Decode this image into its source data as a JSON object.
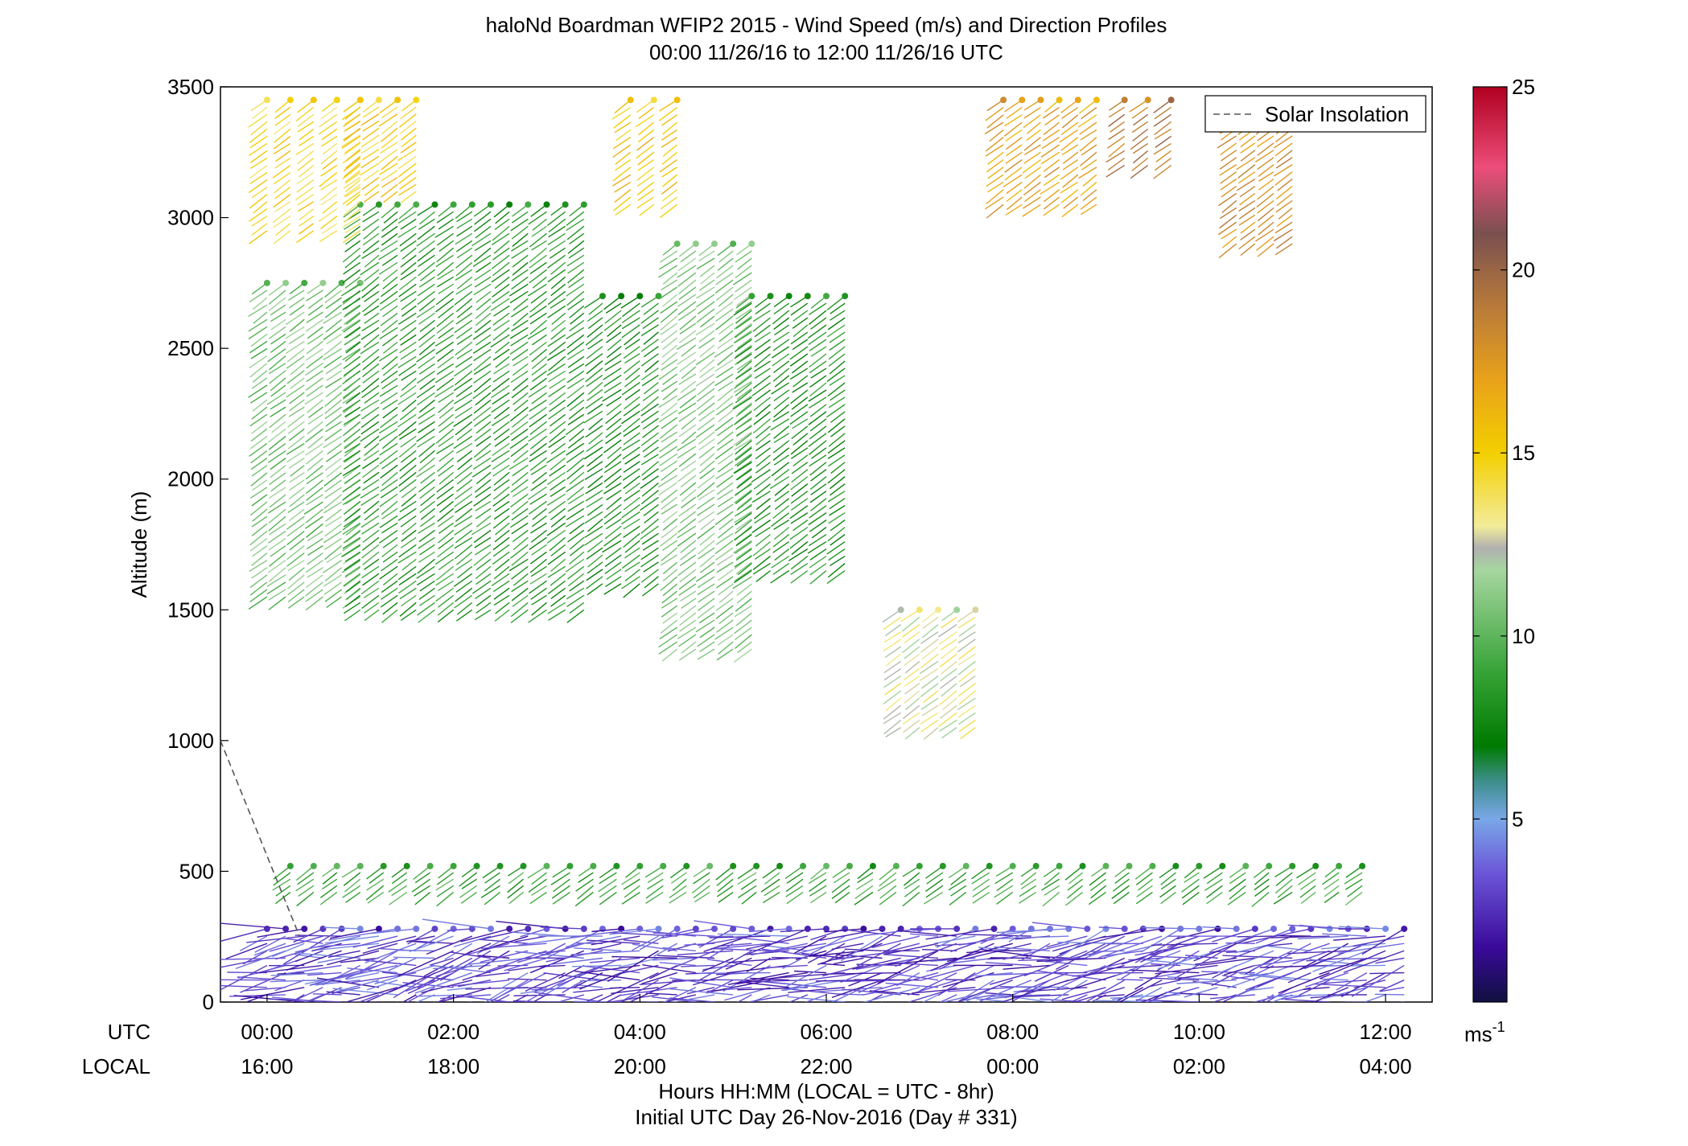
{
  "chart_data": {
    "type": "wind-barb-profile",
    "title": "haloNd Boardman WFIP2 2015 - Wind Speed (m/s) and Direction Profiles",
    "subtitle": "00:00 11/26/16 to 12:00 11/26/16  UTC",
    "ylabel": "Altitude (m)",
    "xlabel": "Hours HH:MM  (LOCAL = UTC - 8hr)",
    "xlabel2": "Initial UTC Day 26-Nov-2016 (Day # 331)",
    "xlim_hours": [
      -0.5,
      12.5
    ],
    "ylim": [
      0,
      3500
    ],
    "y_ticks": [
      "0",
      "500",
      "1000",
      "1500",
      "2000",
      "2500",
      "3000",
      "3500"
    ],
    "y_tick_values": [
      0,
      500,
      1000,
      1500,
      2000,
      2500,
      3000,
      3500
    ],
    "x_row_labels": [
      "UTC",
      "LOCAL"
    ],
    "x_ticks_utc": [
      "00:00",
      "02:00",
      "04:00",
      "06:00",
      "08:00",
      "10:00",
      "12:00"
    ],
    "x_ticks_local": [
      "16:00",
      "18:00",
      "20:00",
      "22:00",
      "00:00",
      "02:00",
      "04:00"
    ],
    "x_tick_hours": [
      0,
      2,
      4,
      6,
      8,
      10,
      12
    ],
    "legend": {
      "label": "Solar Insolation",
      "position": "top-right"
    },
    "colorbar": {
      "min": 0,
      "max": 25,
      "ticks": [
        "5",
        "10",
        "15",
        "20",
        "25"
      ],
      "tick_values": [
        5,
        10,
        15,
        20,
        25
      ],
      "unit_label": "ms",
      "unit_exponent": "-1",
      "stops": [
        {
          "v": 0,
          "color": "#101040"
        },
        {
          "v": 1.5,
          "color": "#3a0a9a"
        },
        {
          "v": 3.5,
          "color": "#6b55d8"
        },
        {
          "v": 5,
          "color": "#7aa7e8"
        },
        {
          "v": 6,
          "color": "#3f8f8f"
        },
        {
          "v": 7,
          "color": "#007a00"
        },
        {
          "v": 9,
          "color": "#36a336"
        },
        {
          "v": 11.8,
          "color": "#a6d6a0"
        },
        {
          "v": 12.4,
          "color": "#b0b0b0"
        },
        {
          "v": 13,
          "color": "#f3ec9a"
        },
        {
          "v": 15,
          "color": "#f3cf00"
        },
        {
          "v": 17,
          "color": "#e8a21a"
        },
        {
          "v": 19,
          "color": "#b87a3a"
        },
        {
          "v": 21,
          "color": "#7a5050"
        },
        {
          "v": 22.8,
          "color": "#ec4d7a"
        },
        {
          "v": 25,
          "color": "#b00020"
        }
      ]
    },
    "solar_insolation_line": {
      "x_hours": [
        -0.5,
        0.35
      ],
      "y": [
        1000,
        250
      ]
    },
    "profile_groups": [
      {
        "from": 0,
        "to": 1.0,
        "step": 0.2,
        "y0": 1550,
        "y1": 2750,
        "speed": 10.5
      },
      {
        "from": 1.0,
        "to": 3.5,
        "step": 0.2,
        "y0": 1500,
        "y1": 3050,
        "speed": 8.5
      },
      {
        "from": 3.6,
        "to": 4.3,
        "step": 0.2,
        "y0": 1600,
        "y1": 2700,
        "speed": 8.0
      },
      {
        "from": 4.4,
        "to": 5.2,
        "step": 0.2,
        "y0": 1350,
        "y1": 2900,
        "speed": 10.8
      },
      {
        "from": 5.2,
        "to": 6.2,
        "step": 0.2,
        "y0": 1650,
        "y1": 2700,
        "speed": 8.2
      },
      {
        "from": 6.8,
        "to": 7.6,
        "step": 0.2,
        "y0": 1050,
        "y1": 1500,
        "speed": 12.8
      },
      {
        "from": 0,
        "to": 1.0,
        "step": 0.25,
        "y0": 2950,
        "y1": 3450,
        "speed": 14.5
      },
      {
        "from": 1.0,
        "to": 1.6,
        "step": 0.2,
        "y0": 3100,
        "y1": 3450,
        "speed": 15.0
      },
      {
        "from": 3.9,
        "to": 4.4,
        "step": 0.25,
        "y0": 3050,
        "y1": 3450,
        "speed": 15.5
      },
      {
        "from": 7.9,
        "to": 8.9,
        "step": 0.2,
        "y0": 3050,
        "y1": 3450,
        "speed": 17.0
      },
      {
        "from": 9.2,
        "to": 9.7,
        "step": 0.25,
        "y0": 3200,
        "y1": 3450,
        "speed": 19.0
      },
      {
        "from": 10.4,
        "to": 11.1,
        "step": 0.2,
        "y0": 2900,
        "y1": 3450,
        "speed": 18.0
      },
      {
        "from": 0.25,
        "to": 11.8,
        "step": 0.25,
        "y0": 420,
        "y1": 520,
        "speed": 9.0
      },
      {
        "from": 0,
        "to": 12.2,
        "step": 0.2,
        "y0": 0,
        "y1": 280,
        "speed": 3.0
      }
    ]
  }
}
